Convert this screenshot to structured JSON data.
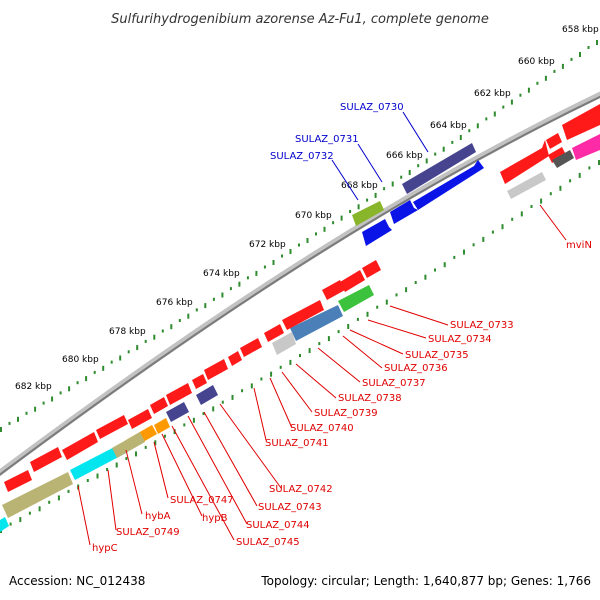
{
  "title": "Sulfurihydrogenibium azorense Az-Fu1, complete genome",
  "footer": {
    "accession": "Accession: NC_012438",
    "summary": "Topology: circular; Length: 1,640,877 bp; Genes: 1,766"
  },
  "scale_labels": [
    "658 kbp",
    "660 kbp",
    "662 kbp",
    "664 kbp",
    "666 kbp",
    "668 kbp",
    "670 kbp",
    "672 kbp",
    "674 kbp",
    "676 kbp",
    "678 kbp",
    "680 kbp",
    "682 kbp"
  ],
  "forward_labels": [
    "SULAZ_0730",
    "SULAZ_0731",
    "SULAZ_0732"
  ],
  "reverse_labels": [
    "mviN",
    "SULAZ_0733",
    "SULAZ_0734",
    "SULAZ_0735",
    "SULAZ_0736",
    "SULAZ_0737",
    "SULAZ_0738",
    "SULAZ_0739",
    "SULAZ_0740",
    "SULAZ_0741",
    "SULAZ_0742",
    "SULAZ_0743",
    "SULAZ_0744",
    "SULAZ_0745",
    "hypB",
    "SULAZ_0747",
    "hybA",
    "SULAZ_0749",
    "hypC"
  ],
  "colors": {
    "backbone": "#8c8c8c",
    "scale_dots": "#2e8b2e",
    "cds_red": "#ff1a1a",
    "forward_blue": "#0a14e6",
    "slate": "#46448f",
    "steel": "#4a7fb8",
    "green": "#3cc23c",
    "olive": "#b9b473",
    "cyan": "#00e5ee",
    "orange": "#ff9900",
    "gray": "#c8c8c8",
    "magenta": "#ff2aa6",
    "dark": "#555555",
    "lime": "#88b52a"
  }
}
